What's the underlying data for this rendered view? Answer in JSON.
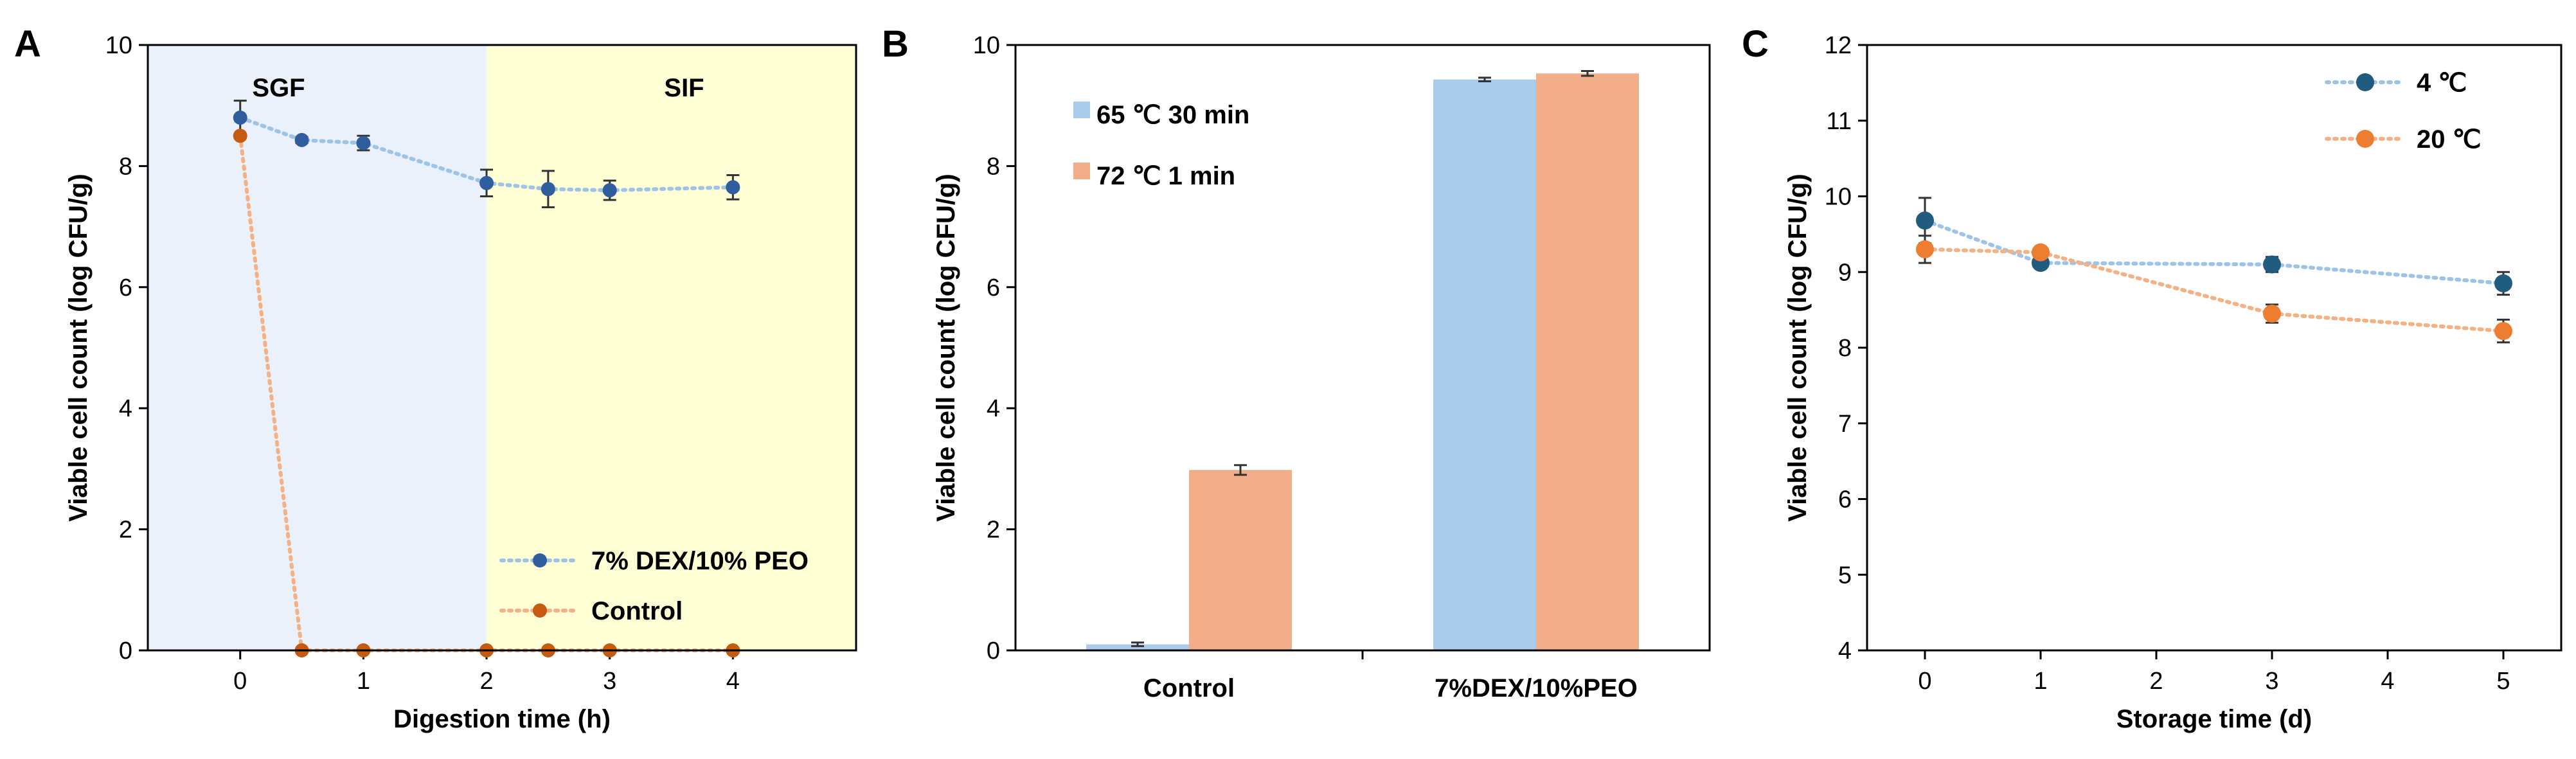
{
  "colors": {
    "blue_series": "#2F5D9E",
    "blue_line": "#9DC3E6",
    "orange_series": "#C55A11",
    "orange_line": "#F4B183",
    "sgf_bg": "#EAF1FB",
    "sif_bg": "#FFFFD5",
    "bar_blue": "#A9CCEB",
    "bar_orange": "#F2AE88",
    "teal_point": "#1F5C80",
    "orange_point": "#ED7D31"
  },
  "chart_data": [
    {
      "panel": "A",
      "type": "line",
      "title": "",
      "xlabel": "Digestion time (h)",
      "ylabel": "Viable cell count (log CFU/g)",
      "xlim": [
        -0.75,
        5.0
      ],
      "ylim": [
        0,
        10
      ],
      "xticks": [
        0,
        1,
        2,
        3,
        4
      ],
      "yticks": [
        0,
        2,
        4,
        6,
        8,
        10
      ],
      "regions": [
        {
          "label": "SGF",
          "x": [
            -0.75,
            2
          ]
        },
        {
          "label": "SIF",
          "x": [
            2,
            5.0
          ]
        }
      ],
      "legend_position": "bottom-right",
      "series": [
        {
          "name": "7% DEX/10% PEO",
          "x": [
            0,
            0.5,
            1,
            2,
            2.5,
            3,
            4
          ],
          "y": [
            8.8,
            8.43,
            8.38,
            7.72,
            7.62,
            7.6,
            7.65
          ],
          "err": [
            0.28,
            0.05,
            0.12,
            0.22,
            0.3,
            0.16,
            0.2
          ]
        },
        {
          "name": "Control",
          "x": [
            0,
            0.5,
            1,
            2,
            2.5,
            3,
            4
          ],
          "y": [
            8.5,
            0,
            0,
            0,
            0,
            0,
            0
          ],
          "err": [
            0,
            0,
            0,
            0,
            0,
            0,
            0
          ]
        }
      ]
    },
    {
      "panel": "B",
      "type": "bar",
      "title": "",
      "xlabel": "",
      "ylabel": "Viable cell count (log CFU/g)",
      "ylim": [
        0,
        10
      ],
      "yticks": [
        0,
        2,
        4,
        6,
        8,
        10
      ],
      "categories": [
        "Control",
        "7%DEX/10%PEO"
      ],
      "legend_position": "top-left",
      "series": [
        {
          "name": "65 ℃ 30 min",
          "values": [
            0.1,
            9.43
          ],
          "err": [
            0.03,
            0.03
          ]
        },
        {
          "name": "72 ℃ 1 min",
          "values": [
            2.98,
            9.53
          ],
          "err": [
            0.08,
            0.04
          ]
        }
      ]
    },
    {
      "panel": "C",
      "type": "line",
      "title": "",
      "xlabel": "Storage time (d)",
      "ylabel": "Viable cell count (log CFU/g)",
      "xlim": [
        -0.5,
        5.5
      ],
      "ylim": [
        4,
        12
      ],
      "xticks": [
        0,
        1,
        2,
        3,
        4,
        5
      ],
      "yticks": [
        4,
        5,
        6,
        7,
        8,
        9,
        10,
        11,
        12
      ],
      "legend_position": "top-right",
      "series": [
        {
          "name": "4 ℃",
          "x": [
            0,
            1,
            3,
            5
          ],
          "y": [
            9.68,
            9.12,
            9.1,
            8.85
          ],
          "err": [
            0.3,
            0.05,
            0.1,
            0.15
          ]
        },
        {
          "name": "20 ℃",
          "x": [
            0,
            1,
            3,
            5
          ],
          "y": [
            9.3,
            9.26,
            8.45,
            8.22
          ],
          "err": [
            0.18,
            0.05,
            0.12,
            0.15
          ]
        }
      ]
    }
  ]
}
